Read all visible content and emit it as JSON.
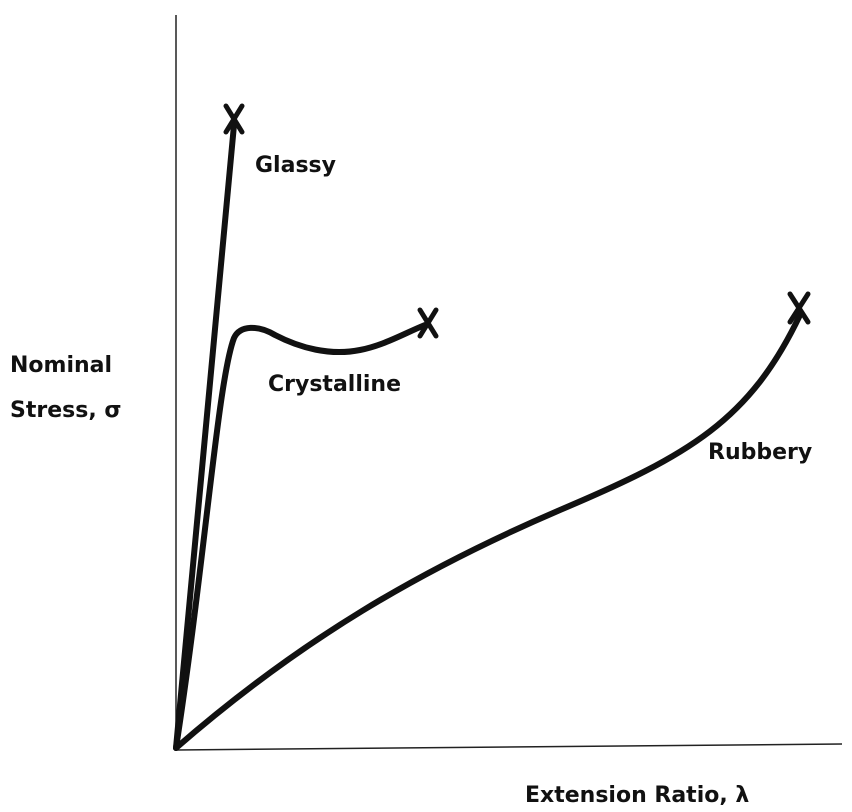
{
  "curves": [
    {
      "label": "Glassy"
    },
    {
      "label": "Crystalline"
    },
    {
      "label": "Rubbery"
    }
  ],
  "axes": {
    "y_label": [
      "Nominal",
      "Stress, σ"
    ],
    "x_label": "Extension Ratio, λ"
  }
}
